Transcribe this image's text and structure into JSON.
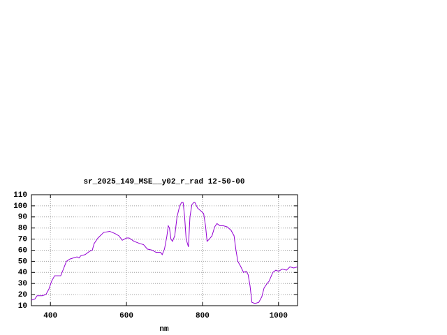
{
  "chart_data": {
    "type": "line",
    "title": "sr_2025_149_MSE__y02_r_rad 12-50-00",
    "x_label": "nm",
    "xlim": [
      350,
      1050
    ],
    "xticks": [
      400,
      600,
      800,
      1000
    ],
    "ylim": [
      10,
      110
    ],
    "yticks": [
      10,
      20,
      30,
      40,
      50,
      60,
      70,
      80,
      90,
      100,
      110
    ],
    "grid": true,
    "series": [
      {
        "color": "#9400d3",
        "x": [
          350,
          359,
          365,
          378,
          388,
          396,
          403,
          411,
          420,
          427,
          433,
          442,
          451,
          460,
          470,
          475,
          480,
          491,
          503,
          510,
          515,
          525,
          540,
          556,
          570,
          580,
          589,
          600,
          607,
          620,
          635,
          645,
          655,
          668,
          678,
          690,
          694,
          700,
          706,
          710,
          713,
          717,
          721,
          727,
          733,
          740,
          745,
          749,
          753,
          757,
          763,
          767,
          772,
          777,
          780,
          787,
          797,
          803,
          808,
          812,
          818,
          825,
          832,
          838,
          846,
          855,
          865,
          875,
          883,
          888,
          893,
          901,
          908,
          915,
          920,
          925,
          930,
          938,
          948,
          956,
          962,
          970,
          975,
          985,
          993,
          1000,
          1010,
          1021,
          1030,
          1040,
          1050
        ],
        "values": [
          15,
          16,
          19,
          19,
          20,
          25,
          32,
          37,
          37,
          37,
          42,
          50,
          52,
          53,
          54,
          53,
          55,
          56,
          59,
          60,
          66,
          71,
          76,
          77,
          75,
          73,
          69,
          71,
          71,
          68,
          66,
          65,
          61,
          60,
          58,
          58,
          56,
          61,
          72,
          82,
          80,
          70,
          68,
          73,
          90,
          100,
          103,
          103,
          90,
          70,
          63,
          90,
          101,
          103,
          103,
          98,
          95,
          93,
          82,
          68,
          70,
          73,
          81,
          84,
          82,
          82,
          81,
          78,
          73,
          60,
          50,
          45,
          40,
          41,
          38,
          28,
          13,
          12,
          13,
          18,
          26,
          30,
          32,
          40,
          42,
          41,
          43,
          42,
          45,
          44,
          45
        ]
      }
    ]
  }
}
